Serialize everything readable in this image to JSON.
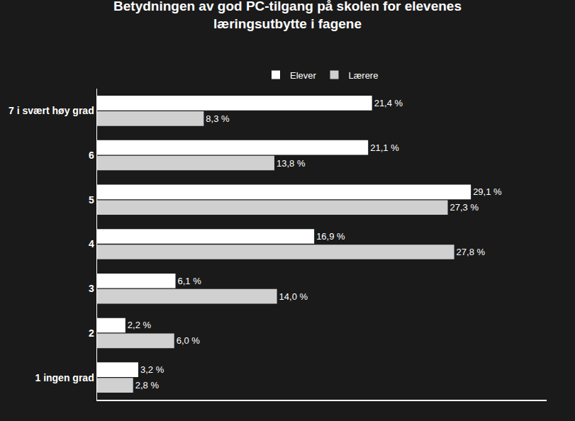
{
  "chart_data": {
    "type": "bar",
    "orientation": "horizontal",
    "title": "Betydningen av god PC-tilgang på skolen for elevenes\nlæringsutbytte i fagene",
    "categories": [
      "7 i svært høy grad",
      "6",
      "5",
      "4",
      "3",
      "2",
      "1 ingen grad"
    ],
    "series": [
      {
        "name": "Elever",
        "color": "#ffffff",
        "values": [
          21.4,
          21.1,
          29.1,
          16.9,
          6.1,
          2.2,
          3.2
        ],
        "value_labels": [
          "21,4 %",
          "21,1 %",
          "29,1 %",
          "16,9 %",
          "6,1 %",
          "2,2 %",
          "3,2 %"
        ]
      },
      {
        "name": "Lærere",
        "color": "#d0d0d0",
        "values": [
          8.3,
          13.8,
          27.3,
          27.8,
          14.0,
          6.0,
          2.8
        ],
        "value_labels": [
          "8,3 %",
          "13,8 %",
          "27,3 %",
          "27,8 %",
          "14,0 %",
          "6,0 %",
          "2,8 %"
        ]
      }
    ],
    "xlim": [
      0,
      35
    ],
    "xticks": [],
    "grid": false,
    "legend": "top",
    "data_labels": true,
    "tick_labels": "y"
  }
}
